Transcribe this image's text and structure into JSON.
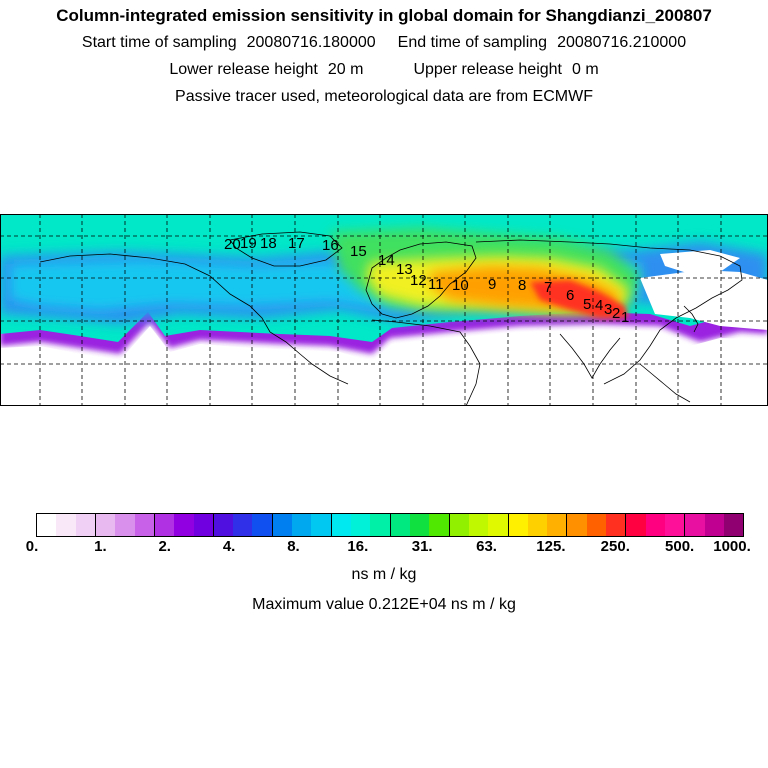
{
  "header": {
    "title": "Column-integrated emission sensitivity in global domain for Shangdianzi_200807",
    "start_label": "Start time of sampling",
    "start_value": "20080716.180000",
    "end_label": "End time of sampling",
    "end_value": "20080716.210000",
    "lower_label": "Lower release height",
    "lower_value": "20 m",
    "upper_label": "Upper release height",
    "upper_value": "0 m",
    "note": "Passive tracer used, meteorological data are from ECMWF"
  },
  "map": {
    "trajectory_labels": [
      "20",
      "19",
      "18",
      "17",
      "16",
      "15",
      "14",
      "13",
      "12",
      "11",
      "10",
      "9",
      "8",
      "7",
      "6",
      "5",
      "4",
      "3",
      "2",
      "1"
    ],
    "ocean_color": "#00e8c8",
    "land_color": "#ffffff",
    "grid_style": "dashed"
  },
  "colorbar": {
    "colors": [
      "#ffffff",
      "#f8e8f8",
      "#f0d0f4",
      "#e8b8f0",
      "#d890ec",
      "#c860e8",
      "#b030e4",
      "#9000e0",
      "#7000e0",
      "#5010e0",
      "#3030e8",
      "#1050f0",
      "#0080f0",
      "#00a8f0",
      "#00c8f0",
      "#00e8f0",
      "#00f0d8",
      "#00f0a8",
      "#00e880",
      "#10e040",
      "#50e800",
      "#90f000",
      "#c0f800",
      "#e0f800",
      "#fff000",
      "#ffd000",
      "#ffb000",
      "#ff9000",
      "#ff6000",
      "#ff3020",
      "#ff0040",
      "#ff0080",
      "#ff1098",
      "#e810a0",
      "#c00090",
      "#900070"
    ],
    "tick_labels": [
      "0.",
      "1.",
      "2.",
      "4.",
      "8.",
      "16.",
      "31.",
      "63.",
      "125.",
      "250.",
      "500.",
      "1000."
    ],
    "units": "ns m / kg"
  },
  "max_value_text": "Maximum value  0.212E+04 ns m / kg"
}
